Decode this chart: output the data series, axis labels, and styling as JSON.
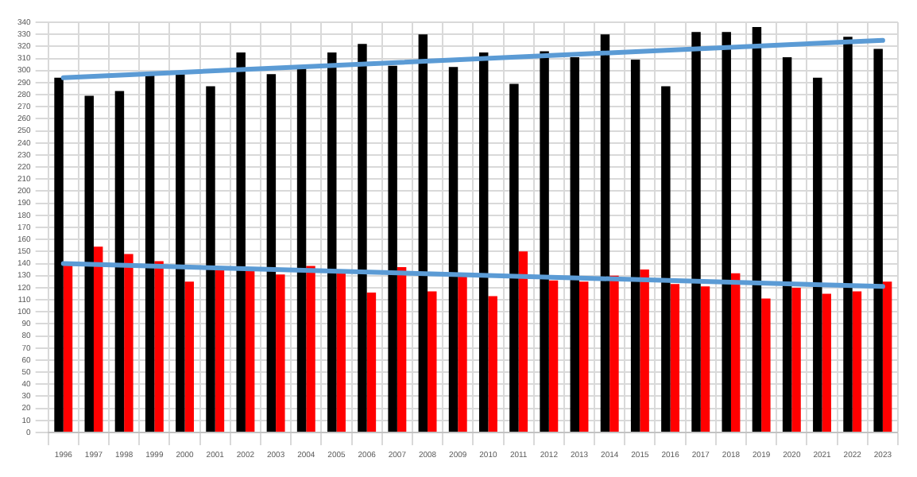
{
  "chart_data": {
    "type": "bar",
    "categories": [
      "1996",
      "1997",
      "1998",
      "1999",
      "2000",
      "2001",
      "2002",
      "2003",
      "2004",
      "2005",
      "2006",
      "2007",
      "2008",
      "2009",
      "2010",
      "2011",
      "2012",
      "2013",
      "2014",
      "2015",
      "2016",
      "2017",
      "2018",
      "2019",
      "2020",
      "2021",
      "2022",
      "2023"
    ],
    "series": [
      {
        "color": "#000000",
        "values": [
          294,
          279,
          283,
          297,
          297,
          287,
          315,
          297,
          302,
          315,
          322,
          304,
          330,
          303,
          315,
          289,
          316,
          311,
          330,
          309,
          287,
          332,
          332,
          336,
          311,
          294,
          328,
          318
        ]
      },
      {
        "color": "#ff0000",
        "values": [
          140,
          154,
          148,
          142,
          125,
          136,
          135,
          131,
          138,
          132,
          116,
          137,
          117,
          132,
          113,
          150,
          126,
          125,
          130,
          135,
          123,
          121,
          132,
          111,
          120,
          115,
          117,
          125
        ]
      },
      {
        "type": "line",
        "color": "#5b9bd5",
        "values": [
          294,
          null,
          null,
          null,
          null,
          null,
          null,
          null,
          null,
          null,
          null,
          null,
          null,
          null,
          null,
          null,
          null,
          null,
          null,
          null,
          null,
          null,
          null,
          null,
          null,
          null,
          null,
          325
        ]
      },
      {
        "type": "line",
        "color": "#5b9bd5",
        "values": [
          140,
          null,
          null,
          null,
          null,
          null,
          null,
          null,
          null,
          null,
          null,
          null,
          null,
          null,
          null,
          null,
          null,
          null,
          null,
          null,
          null,
          null,
          null,
          null,
          null,
          null,
          null,
          121
        ]
      }
    ],
    "ylim": [
      0,
      340
    ],
    "yticks": [
      0,
      10,
      20,
      30,
      40,
      50,
      60,
      70,
      80,
      90,
      100,
      110,
      120,
      130,
      140,
      150,
      160,
      170,
      180,
      190,
      200,
      210,
      220,
      230,
      240,
      250,
      260,
      270,
      280,
      290,
      300,
      310,
      320,
      330,
      340
    ],
    "grid": true,
    "legend": false
  }
}
